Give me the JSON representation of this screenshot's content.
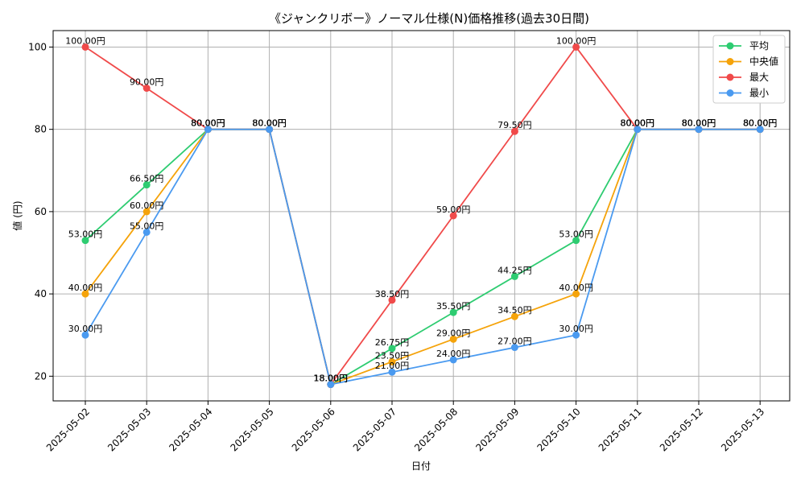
{
  "chart_data": {
    "type": "line",
    "title": "《ジャンクリボー》ノーマル仕様(N)価格推移(過去30日間)",
    "xlabel": "日付",
    "ylabel": "値 (円)",
    "ylim": [
      14,
      104
    ],
    "yticks": [
      20,
      40,
      60,
      80,
      100
    ],
    "grid": true,
    "legend_position": "top-right",
    "label_suffix": "円",
    "categories": [
      "2025-05-02",
      "2025-05-03",
      "2025-05-04",
      "2025-05-05",
      "2025-05-06",
      "2025-05-07",
      "2025-05-08",
      "2025-05-09",
      "2025-05-10",
      "2025-05-11",
      "2025-05-12",
      "2025-05-13"
    ],
    "series": [
      {
        "name": "平均",
        "color": "#2ecc71",
        "values": [
          53.0,
          66.5,
          80.0,
          80.0,
          18.0,
          26.75,
          35.5,
          44.25,
          53.0,
          80.0,
          80.0,
          80.0
        ]
      },
      {
        "name": "中央値",
        "color": "#f5a30a",
        "values": [
          40.0,
          60.0,
          80.0,
          80.0,
          18.0,
          23.5,
          29.0,
          34.5,
          40.0,
          80.0,
          80.0,
          80.0
        ]
      },
      {
        "name": "最大",
        "color": "#f04a4a",
        "values": [
          100.0,
          90.0,
          80.0,
          80.0,
          18.0,
          38.5,
          59.0,
          79.5,
          100.0,
          80.0,
          80.0,
          80.0
        ]
      },
      {
        "name": "最小",
        "color": "#4a9af0",
        "values": [
          30.0,
          55.0,
          80.0,
          80.0,
          18.0,
          21.0,
          24.0,
          27.0,
          30.0,
          80.0,
          80.0,
          80.0
        ]
      }
    ]
  }
}
